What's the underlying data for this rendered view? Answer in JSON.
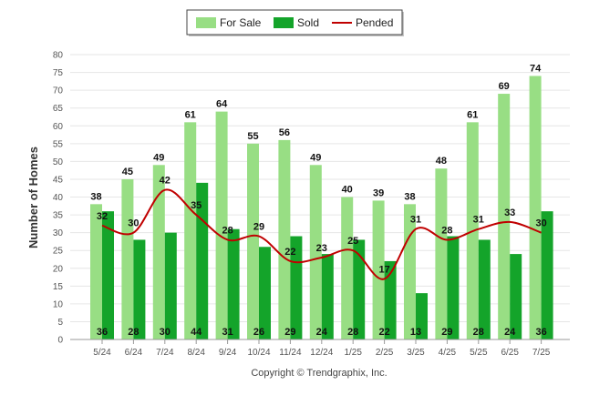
{
  "chart_data": {
    "type": "bar",
    "categories": [
      "5/24",
      "6/24",
      "7/24",
      "8/24",
      "9/24",
      "10/24",
      "11/24",
      "12/24",
      "1/25",
      "2/25",
      "3/25",
      "4/25",
      "5/25",
      "6/25",
      "7/25"
    ],
    "series": [
      {
        "name": "For Sale",
        "kind": "bar",
        "color": "#98de84",
        "values": [
          38,
          45,
          49,
          61,
          64,
          55,
          56,
          49,
          40,
          39,
          38,
          48,
          61,
          69,
          74
        ]
      },
      {
        "name": "Sold",
        "kind": "bar",
        "color": "#14a42a",
        "values": [
          36,
          28,
          30,
          44,
          31,
          26,
          29,
          24,
          28,
          22,
          13,
          29,
          28,
          24,
          36
        ]
      },
      {
        "name": "Pended",
        "kind": "line",
        "color": "#c00000",
        "values": [
          32,
          30,
          42,
          35,
          28,
          29,
          22,
          23,
          25,
          17,
          31,
          28,
          31,
          33,
          30
        ]
      }
    ],
    "ylabel": "Number of Homes",
    "xlabel": "",
    "ylim": [
      0,
      80
    ],
    "yticks": [
      0,
      5,
      10,
      15,
      20,
      25,
      30,
      35,
      40,
      45,
      50,
      55,
      60,
      65,
      70,
      75,
      80
    ],
    "grid": true,
    "legend_position": "top-center",
    "credit": "Copyright © Trendgraphix, Inc."
  }
}
